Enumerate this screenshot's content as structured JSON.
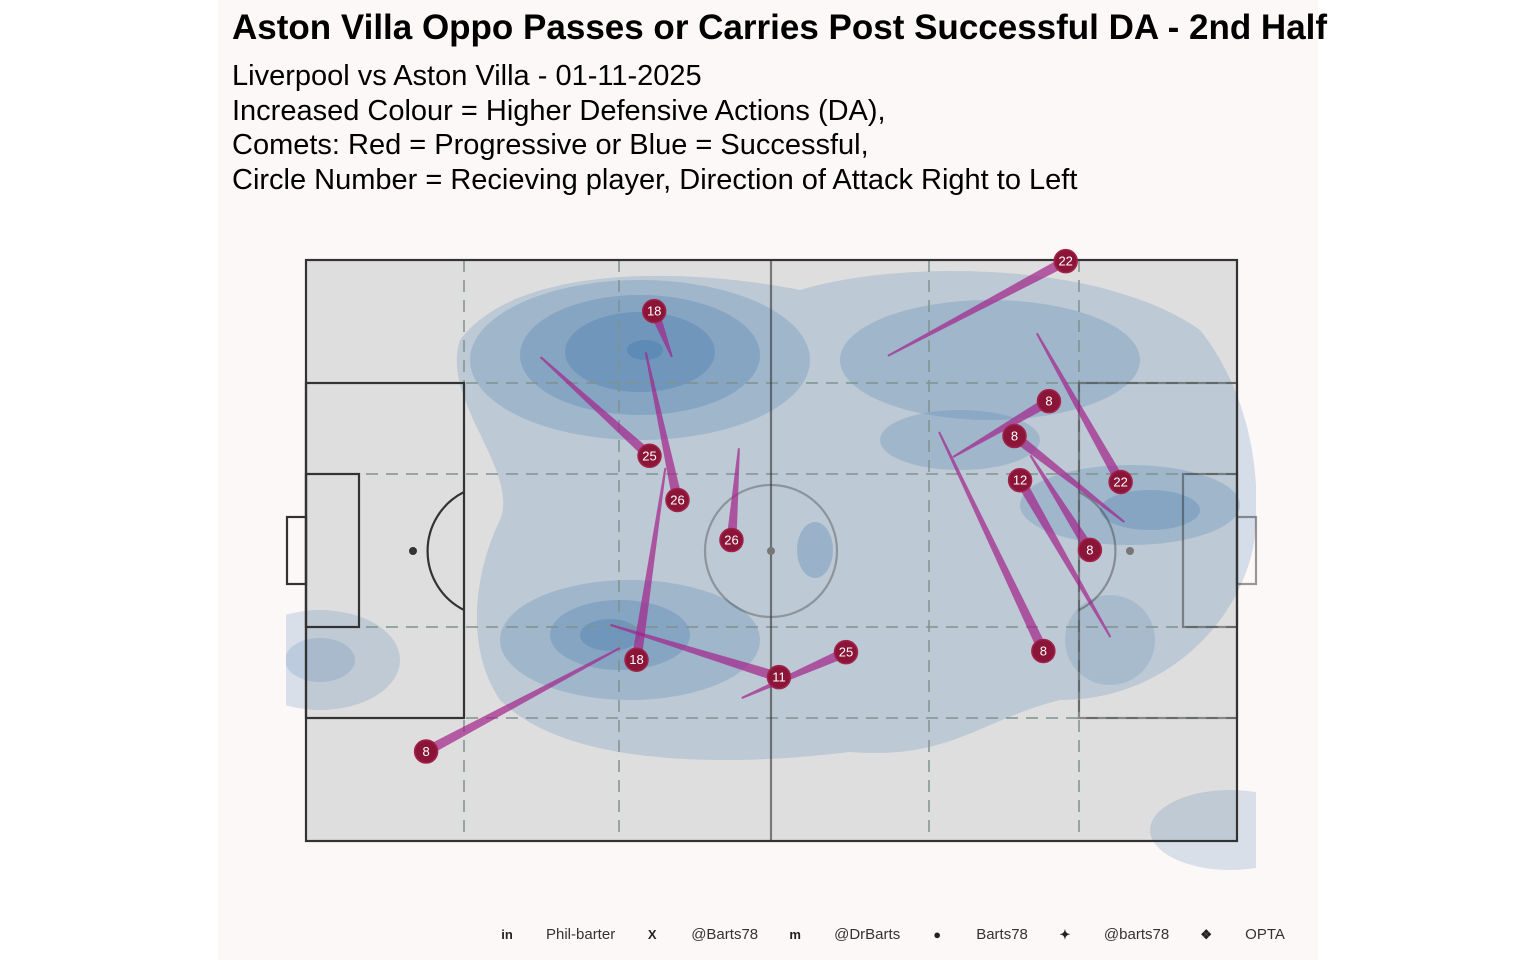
{
  "chart_data": {
    "type": "scatter",
    "title": "Aston Villa Oppo Passes or Carries Post Successful DA - 2nd Half",
    "subtitle_lines": [
      "Liverpool vs Aston Villa - 01-11-2025",
      "Increased Colour = Higher Defensive Actions (DA),",
      "Comets: Red = Progressive or Blue = Successful,",
      "Circle Number = Recieving player, Direction of Attack Right to Left"
    ],
    "pitch_units": {
      "xlim": [
        0,
        100
      ],
      "ylim": [
        0,
        100
      ]
    },
    "colors": {
      "comet": "#a3228a",
      "circle": "#8b1538",
      "pitch": "#dedede",
      "density": "#4a7fb0"
    },
    "comets": [
      {
        "player": "18",
        "start": [
          39.3,
          16.7
        ],
        "end": [
          37.4,
          8.8
        ]
      },
      {
        "player": "25",
        "start": [
          25.2,
          16.7
        ],
        "end": [
          36.9,
          33.7
        ]
      },
      {
        "player": "26",
        "start": [
          36.5,
          15.9
        ],
        "end": [
          39.9,
          41.3
        ]
      },
      {
        "player": "26",
        "start": [
          46.5,
          32.4
        ],
        "end": [
          45.7,
          48.2
        ]
      },
      {
        "player": "18",
        "start": [
          38.6,
          35.8
        ],
        "end": [
          35.5,
          68.8
        ]
      },
      {
        "player": "8",
        "start": [
          33.7,
          66.8
        ],
        "end": [
          12.9,
          84.6
        ]
      },
      {
        "player": "11",
        "start": [
          32.7,
          62.8
        ],
        "end": [
          50.8,
          71.8
        ]
      },
      {
        "player": "25",
        "start": [
          46.8,
          75.4
        ],
        "end": [
          58.0,
          67.5
        ]
      },
      {
        "player": "22",
        "start": [
          62.5,
          16.5
        ],
        "end": [
          81.6,
          0.2
        ]
      },
      {
        "player": "8",
        "start": [
          69.5,
          33.9
        ],
        "end": [
          79.8,
          24.3
        ]
      },
      {
        "player": "8",
        "start": [
          87.9,
          45.1
        ],
        "end": [
          76.1,
          30.3
        ]
      },
      {
        "player": "22",
        "start": [
          78.5,
          12.6
        ],
        "end": [
          87.5,
          38.2
        ]
      },
      {
        "player": "12",
        "start": [
          86.4,
          64.9
        ],
        "end": [
          76.7,
          37.9
        ]
      },
      {
        "player": "8",
        "start": [
          77.8,
          33.6
        ],
        "end": [
          84.2,
          49.9
        ]
      },
      {
        "player": "8",
        "start": [
          68.0,
          29.6
        ],
        "end": [
          79.2,
          67.3
        ]
      }
    ]
  },
  "footer": [
    {
      "icon": "linkedin-icon",
      "glyph": "in",
      "text": "Phil-barter"
    },
    {
      "icon": "x-icon",
      "glyph": "X",
      "text": "@Barts78"
    },
    {
      "icon": "mastodon-icon",
      "glyph": "m",
      "text": "@DrBarts"
    },
    {
      "icon": "github-icon",
      "glyph": "●",
      "text": "Barts78"
    },
    {
      "icon": "bluesky-icon",
      "glyph": "✦",
      "text": "@barts78"
    },
    {
      "icon": "dropbox-icon",
      "glyph": "❖",
      "text": "OPTA"
    }
  ]
}
